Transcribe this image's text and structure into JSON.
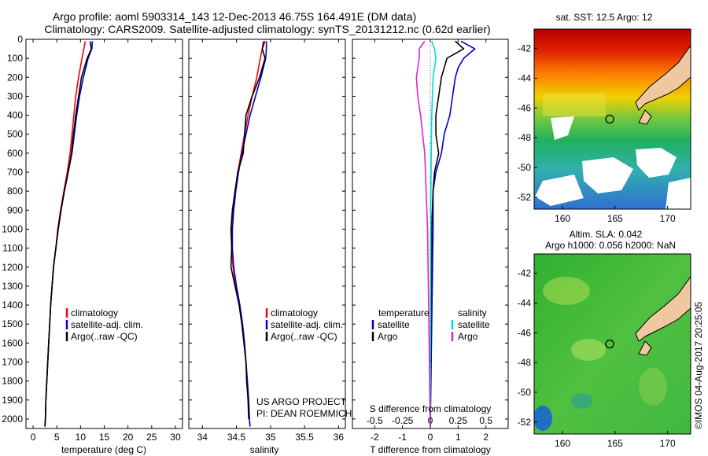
{
  "title_line1": "Argo profile: aoml 5903314_143 12-Dec-2013 46.75S 164.491E (DM data)",
  "title_line2": "Climatology: CARS2009. Satellite-adjusted climatology: synTS_20131212.nc (0.62d earlier)",
  "depth_ticks": [
    0,
    100,
    200,
    300,
    400,
    500,
    600,
    700,
    800,
    900,
    1000,
    1100,
    1200,
    1300,
    1400,
    1500,
    1600,
    1700,
    1800,
    1900,
    2000
  ],
  "project_note": {
    "line1": "US ARGO PROJECT",
    "line2": "PI: DEAN ROEMMICH"
  },
  "imos_stamp": "©IMOS 04-Aug-2017 20:25:05",
  "colors": {
    "climatology": "#ff0000",
    "satellite": "#0000cc",
    "argo": "#000000",
    "sal_satellite": "#00dddd",
    "sal_argo": "#dd22dd",
    "land": "#f0c8a0"
  },
  "chart_data": [
    {
      "type": "line",
      "panel": "temperature",
      "xlabel": "temperature (deg C)",
      "xlim": [
        -1.5,
        31.5
      ],
      "ylim": [
        2050,
        0
      ],
      "xticks": [
        0,
        5,
        10,
        15,
        20,
        25,
        30
      ],
      "legend": [
        "climatology",
        "satellite-adj. clim.",
        "Argo(..raw -QC)"
      ],
      "series": [
        {
          "name": "climatology",
          "color_key": "climatology",
          "points": [
            [
              11.0,
              10
            ],
            [
              10.7,
              50
            ],
            [
              10.3,
              100
            ],
            [
              9.6,
              200
            ],
            [
              9.0,
              300
            ],
            [
              8.6,
              400
            ],
            [
              8.2,
              500
            ],
            [
              7.8,
              600
            ],
            [
              7.2,
              700
            ],
            [
              6.5,
              800
            ],
            [
              5.8,
              900
            ],
            [
              5.2,
              1000
            ],
            [
              4.8,
              1100
            ],
            [
              4.3,
              1200
            ],
            [
              4.0,
              1300
            ],
            [
              3.7,
              1400
            ],
            [
              3.5,
              1500
            ],
            [
              3.3,
              1600
            ],
            [
              3.1,
              1700
            ],
            [
              2.9,
              1800
            ],
            [
              2.7,
              1900
            ],
            [
              2.6,
              2000
            ],
            [
              2.5,
              2040
            ]
          ]
        },
        {
          "name": "satellite-adj. clim.",
          "color_key": "satellite",
          "points": [
            [
              12.5,
              10
            ],
            [
              12.4,
              50
            ],
            [
              11.6,
              100
            ],
            [
              10.6,
              200
            ],
            [
              9.8,
              300
            ],
            [
              9.2,
              400
            ],
            [
              8.7,
              500
            ],
            [
              8.2,
              600
            ],
            [
              7.4,
              700
            ],
            [
              6.6,
              800
            ],
            [
              5.9,
              900
            ],
            [
              5.3,
              1000
            ],
            [
              4.8,
              1100
            ],
            [
              4.3,
              1200
            ],
            [
              4.0,
              1300
            ],
            [
              3.7,
              1400
            ],
            [
              3.5,
              1500
            ],
            [
              3.3,
              1600
            ],
            [
              3.1,
              1700
            ],
            [
              2.9,
              1800
            ],
            [
              2.7,
              1900
            ],
            [
              2.6,
              2000
            ],
            [
              2.5,
              2040
            ]
          ]
        },
        {
          "name": "Argo(..raw -QC)",
          "color_key": "argo",
          "points": [
            [
              12.0,
              10
            ],
            [
              12.3,
              50
            ],
            [
              11.4,
              100
            ],
            [
              10.2,
              200
            ],
            [
              9.6,
              300
            ],
            [
              9.0,
              400
            ],
            [
              8.5,
              500
            ],
            [
              8.1,
              600
            ],
            [
              7.4,
              700
            ],
            [
              6.6,
              800
            ],
            [
              5.9,
              900
            ],
            [
              5.3,
              1000
            ],
            [
              4.8,
              1100
            ],
            [
              4.3,
              1200
            ],
            [
              4.0,
              1300
            ],
            [
              3.7,
              1400
            ],
            [
              3.5,
              1500
            ],
            [
              3.3,
              1600
            ],
            [
              3.1,
              1700
            ],
            [
              2.9,
              1800
            ],
            [
              2.7,
              1900
            ],
            [
              2.6,
              2000
            ],
            [
              2.5,
              2040
            ]
          ]
        }
      ]
    },
    {
      "type": "line",
      "panel": "salinity",
      "xlabel": "salinity",
      "xlim": [
        33.8,
        36.1
      ],
      "ylim": [
        2050,
        0
      ],
      "xticks": [
        34,
        34.5,
        35,
        35.5,
        36
      ],
      "xtick_labels": [
        "34",
        "34.5",
        "35",
        "35.5",
        "36"
      ],
      "legend": [
        "climatology",
        "satellite-adj. clim.",
        "Argo(..raw -QC)"
      ],
      "series": [
        {
          "name": "climatology",
          "color_key": "climatology",
          "points": [
            [
              34.92,
              10
            ],
            [
              34.88,
              50
            ],
            [
              34.85,
              100
            ],
            [
              34.8,
              200
            ],
            [
              34.73,
              300
            ],
            [
              34.67,
              400
            ],
            [
              34.62,
              500
            ],
            [
              34.57,
              600
            ],
            [
              34.52,
              700
            ],
            [
              34.48,
              800
            ],
            [
              34.45,
              900
            ],
            [
              34.43,
              1000
            ],
            [
              34.43,
              1100
            ],
            [
              34.45,
              1200
            ],
            [
              34.49,
              1300
            ],
            [
              34.54,
              1400
            ],
            [
              34.58,
              1500
            ],
            [
              34.61,
              1600
            ],
            [
              34.64,
              1700
            ],
            [
              34.66,
              1800
            ],
            [
              34.68,
              1900
            ],
            [
              34.69,
              2000
            ],
            [
              34.7,
              2040
            ]
          ]
        },
        {
          "name": "satellite-adj. clim.",
          "color_key": "satellite",
          "points": [
            [
              34.94,
              10
            ],
            [
              34.94,
              50
            ],
            [
              34.93,
              100
            ],
            [
              34.86,
              200
            ],
            [
              34.78,
              300
            ],
            [
              34.7,
              400
            ],
            [
              34.64,
              500
            ],
            [
              34.58,
              600
            ],
            [
              34.53,
              700
            ],
            [
              34.49,
              800
            ],
            [
              34.46,
              900
            ],
            [
              34.44,
              1000
            ],
            [
              34.44,
              1100
            ],
            [
              34.46,
              1200
            ],
            [
              34.5,
              1300
            ],
            [
              34.55,
              1400
            ],
            [
              34.59,
              1500
            ],
            [
              34.62,
              1600
            ],
            [
              34.64,
              1700
            ],
            [
              34.66,
              1800
            ],
            [
              34.68,
              1900
            ],
            [
              34.69,
              2000
            ],
            [
              34.7,
              2040
            ]
          ]
        },
        {
          "name": "Argo(..raw -QC)",
          "color_key": "argo",
          "points": [
            [
              34.9,
              10
            ],
            [
              34.88,
              50
            ],
            [
              34.92,
              100
            ],
            [
              34.84,
              200
            ],
            [
              34.73,
              300
            ],
            [
              34.64,
              400
            ],
            [
              34.62,
              500
            ],
            [
              34.6,
              600
            ],
            [
              34.52,
              700
            ],
            [
              34.48,
              800
            ],
            [
              34.44,
              900
            ],
            [
              34.42,
              1000
            ],
            [
              34.43,
              1100
            ],
            [
              34.42,
              1200
            ],
            [
              34.48,
              1300
            ],
            [
              34.54,
              1400
            ],
            [
              34.58,
              1500
            ],
            [
              34.61,
              1600
            ],
            [
              34.64,
              1700
            ],
            [
              34.65,
              1800
            ],
            [
              34.67,
              1900
            ],
            [
              34.68,
              2000
            ]
          ]
        }
      ]
    },
    {
      "type": "line",
      "panel": "difference",
      "xlabel": "T difference from climatology",
      "xlabel_top": "S difference from climatology",
      "xlim": [
        -2.8,
        2.8
      ],
      "ylim": [
        2050,
        0
      ],
      "xticks": [
        -2,
        -1,
        0,
        1,
        2
      ],
      "top_ticks": [
        [
          -0.5,
          "-0.5"
        ],
        [
          -0.25,
          "-0.25"
        ],
        [
          0,
          "0"
        ],
        [
          0.25,
          "0.25"
        ],
        [
          0.5,
          "0.5"
        ]
      ],
      "legend_temperature": {
        "header": "temperature",
        "items": [
          "satellite",
          "Argo"
        ]
      },
      "legend_salinity": {
        "header": "salinity",
        "items": [
          "satellite",
          "Argo"
        ]
      },
      "series": [
        {
          "name": "satellite",
          "group": "temperature",
          "color_key": "satellite",
          "points": [
            [
              1.1,
              10
            ],
            [
              1.6,
              50
            ],
            [
              1.2,
              100
            ],
            [
              1.0,
              150
            ],
            [
              0.9,
              200
            ],
            [
              0.8,
              300
            ],
            [
              0.7,
              400
            ],
            [
              0.5,
              500
            ],
            [
              0.4,
              600
            ],
            [
              0.2,
              700
            ],
            [
              0.1,
              800
            ],
            [
              0.1,
              1000
            ],
            [
              0.0,
              2040
            ]
          ]
        },
        {
          "name": "Argo",
          "group": "temperature",
          "color_key": "argo",
          "points": [
            [
              0.9,
              10
            ],
            [
              1.2,
              50
            ],
            [
              0.6,
              100
            ],
            [
              0.4,
              200
            ],
            [
              0.3,
              300
            ],
            [
              0.2,
              400
            ],
            [
              0.2,
              500
            ],
            [
              0.3,
              600
            ],
            [
              0.15,
              700
            ],
            [
              0.1,
              800
            ],
            [
              0.05,
              1000
            ],
            [
              0.0,
              2040
            ]
          ]
        },
        {
          "name": "satellite",
          "group": "salinity",
          "color_key": "sal_satellite",
          "points": [
            [
              0.05,
              10
            ],
            [
              0.15,
              50
            ],
            [
              0.2,
              100
            ],
            [
              0.1,
              200
            ],
            [
              0.05,
              400
            ],
            [
              0.02,
              800
            ],
            [
              0.0,
              2040
            ]
          ]
        },
        {
          "name": "Argo",
          "group": "salinity",
          "color_key": "sal_argo",
          "points": [
            [
              -0.2,
              10
            ],
            [
              -0.4,
              50
            ],
            [
              -0.4,
              100
            ],
            [
              -0.5,
              200
            ],
            [
              -0.45,
              300
            ],
            [
              -0.35,
              400
            ],
            [
              -0.2,
              600
            ],
            [
              -0.1,
              1000
            ],
            [
              -0.05,
              1500
            ],
            [
              0.0,
              2040
            ]
          ]
        }
      ]
    },
    {
      "type": "heatmap",
      "panel": "sst_map",
      "title": "sat. SST: 12.5  Argo: 12",
      "xlim": [
        157.3,
        172.2
      ],
      "ylim": [
        -52.8,
        -40.7
      ],
      "xticks": [
        160,
        165,
        170
      ],
      "yticks": [
        -42,
        -44,
        -46,
        -48,
        -50,
        -52
      ],
      "marker": [
        164.491,
        -46.75
      ]
    },
    {
      "type": "heatmap",
      "panel": "sla_map",
      "title_line1": "Altim. SLA: 0.042",
      "title_line2": "Argo h1000: 0.056 h2000: NaN",
      "xlim": [
        157.3,
        172.2
      ],
      "ylim": [
        -52.8,
        -40.7
      ],
      "xticks": [
        160,
        165,
        170
      ],
      "yticks": [
        -42,
        -44,
        -46,
        -48,
        -50,
        -52
      ],
      "marker": [
        164.491,
        -46.75
      ]
    }
  ]
}
